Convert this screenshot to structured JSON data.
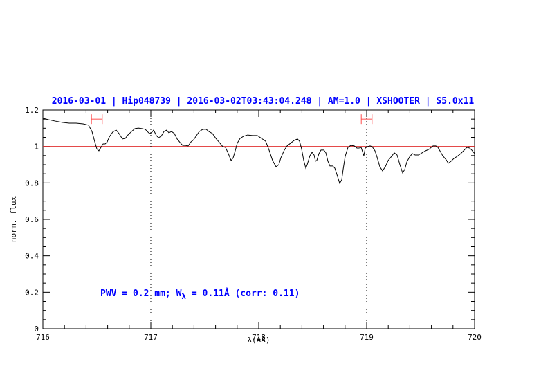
{
  "chart_data": {
    "type": "line",
    "title": "2016-03-01 | Hip048739 | 2016-03-02T03:43:04.248 | AM=1.0 | XSHOOTER | S5.0x11",
    "annotation": {
      "main": "PWV = 0.2 mm; W",
      "sub": "λ",
      "rest": " = 0.11Å (corr: 0.11)"
    },
    "xlabel": "λ(AA)",
    "ylabel": "norm. flux",
    "xlim": [
      716,
      720
    ],
    "ylim": [
      0,
      1.2
    ],
    "xticks": [
      716,
      717,
      718,
      719,
      720
    ],
    "yticks": [
      0,
      0.2,
      0.4,
      0.6,
      0.8,
      1,
      1.2
    ],
    "xminorticks": [
      716.2,
      716.4,
      716.6,
      716.8,
      717.2,
      717.4,
      717.6,
      717.8,
      718.2,
      718.4,
      718.6,
      718.8,
      719.2,
      719.4,
      719.6,
      719.8
    ],
    "yminorticks": [
      0.05,
      0.1,
      0.15,
      0.25,
      0.3,
      0.35,
      0.45,
      0.5,
      0.55,
      0.65,
      0.7,
      0.75,
      0.85,
      0.9,
      0.95,
      1.05,
      1.1,
      1.15
    ],
    "hline": 1,
    "hline_color": "#e03030",
    "vlines": [
      717,
      719
    ],
    "intervals": [
      {
        "x": 716.5,
        "xerr": 0.05,
        "y": 1.15
      },
      {
        "x": 719.0,
        "xerr": 0.05,
        "y": 1.15
      }
    ],
    "interval_color": "#ff5050",
    "x": [
      716.0,
      716.051,
      716.115,
      716.179,
      716.244,
      716.308,
      716.372,
      716.423,
      716.455,
      716.481,
      716.5,
      716.519,
      716.538,
      716.558,
      716.577,
      716.596,
      716.615,
      716.647,
      716.679,
      716.705,
      716.737,
      716.763,
      716.788,
      716.821,
      716.853,
      716.885,
      716.917,
      716.949,
      716.968,
      716.987,
      717.006,
      717.026,
      717.051,
      717.071,
      717.096,
      717.122,
      717.147,
      717.167,
      717.192,
      717.218,
      717.244,
      717.276,
      717.295,
      717.321,
      717.346,
      717.372,
      717.397,
      717.423,
      717.449,
      717.481,
      717.513,
      717.538,
      717.571,
      717.603,
      717.641,
      717.667,
      717.692,
      717.718,
      717.744,
      717.763,
      717.782,
      717.801,
      717.827,
      717.859,
      717.897,
      717.942,
      717.987,
      718.026,
      718.064,
      718.096,
      718.128,
      718.16,
      718.186,
      718.205,
      718.237,
      718.263,
      718.295,
      718.327,
      718.359,
      718.378,
      718.397,
      718.417,
      718.436,
      718.449,
      718.474,
      718.494,
      718.513,
      718.526,
      718.538,
      718.558,
      718.577,
      718.603,
      718.622,
      718.641,
      718.66,
      718.686,
      718.705,
      718.724,
      718.75,
      718.769,
      718.782,
      718.801,
      718.827,
      718.853,
      718.885,
      718.91,
      718.929,
      718.949,
      718.974,
      718.987,
      719.006,
      719.032,
      719.051,
      719.077,
      719.096,
      719.122,
      719.147,
      719.173,
      719.199,
      719.231,
      719.256,
      719.282,
      719.308,
      719.333,
      719.353,
      719.372,
      719.397,
      719.423,
      719.449,
      719.481,
      719.513,
      719.545,
      719.577,
      719.615,
      719.641,
      719.66,
      719.679,
      719.705,
      719.737,
      719.756,
      719.782,
      719.808,
      719.84,
      719.872,
      719.897,
      719.929,
      719.955,
      719.974,
      720.0
    ],
    "series": [
      {
        "color": "#000000",
        "values": [
          1.155,
          1.147,
          1.139,
          1.132,
          1.128,
          1.128,
          1.124,
          1.117,
          1.082,
          1.025,
          0.987,
          0.976,
          0.995,
          1.014,
          1.014,
          1.025,
          1.052,
          1.079,
          1.09,
          1.071,
          1.041,
          1.044,
          1.063,
          1.082,
          1.098,
          1.101,
          1.098,
          1.094,
          1.082,
          1.071,
          1.075,
          1.09,
          1.06,
          1.048,
          1.056,
          1.082,
          1.09,
          1.075,
          1.082,
          1.071,
          1.041,
          1.018,
          1.006,
          1.006,
          1.003,
          1.025,
          1.037,
          1.06,
          1.082,
          1.094,
          1.094,
          1.082,
          1.071,
          1.044,
          1.018,
          0.999,
          0.995,
          0.961,
          0.923,
          0.938,
          0.976,
          1.018,
          1.044,
          1.056,
          1.063,
          1.06,
          1.06,
          1.044,
          1.029,
          0.98,
          0.923,
          0.889,
          0.9,
          0.938,
          0.98,
          1.003,
          1.018,
          1.033,
          1.041,
          1.029,
          0.987,
          0.923,
          0.881,
          0.9,
          0.949,
          0.968,
          0.953,
          0.919,
          0.923,
          0.961,
          0.98,
          0.98,
          0.965,
          0.919,
          0.893,
          0.893,
          0.881,
          0.847,
          0.798,
          0.817,
          0.874,
          0.946,
          0.995,
          1.006,
          1.003,
          0.991,
          0.991,
          0.995,
          0.949,
          0.991,
          0.999,
          1.003,
          0.999,
          0.976,
          0.942,
          0.889,
          0.866,
          0.889,
          0.923,
          0.946,
          0.965,
          0.953,
          0.9,
          0.855,
          0.874,
          0.915,
          0.942,
          0.961,
          0.953,
          0.953,
          0.965,
          0.976,
          0.984,
          1.003,
          1.003,
          0.995,
          0.976,
          0.949,
          0.927,
          0.908,
          0.919,
          0.934,
          0.946,
          0.961,
          0.976,
          0.995,
          0.991,
          0.98,
          0.961
        ]
      }
    ],
    "text_color": "#0000ff"
  }
}
